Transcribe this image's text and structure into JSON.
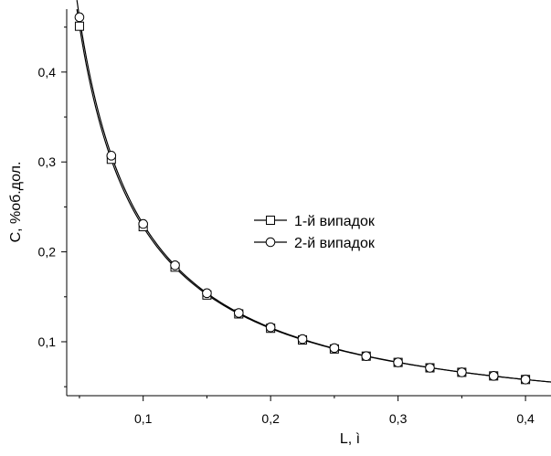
{
  "chart_data": {
    "type": "line",
    "xlabel": "L, ì",
    "ylabel": "C, %об.дол.",
    "xlim": [
      0.04,
      0.42
    ],
    "ylim": [
      0.04,
      0.47
    ],
    "x_ticks": [
      0.1,
      0.2,
      0.3,
      0.4
    ],
    "x_tick_labels": [
      "0,1",
      "0,2",
      "0,3",
      "0,4"
    ],
    "y_ticks": [
      0.1,
      0.2,
      0.3,
      0.4
    ],
    "y_tick_labels": [
      "0,1",
      "0,2",
      "0,3",
      "0,4"
    ],
    "grid": false,
    "legend_placement": "center-right",
    "colors": {
      "line": "#000000",
      "marker_fill": "#ffffff"
    },
    "series": [
      {
        "name": "1-й випадок",
        "marker": "square",
        "x": [
          0.05,
          0.075,
          0.1,
          0.125,
          0.15,
          0.175,
          0.2,
          0.225,
          0.25,
          0.275,
          0.3,
          0.325,
          0.35,
          0.375,
          0.4
        ],
        "y": [
          0.451,
          0.303,
          0.228,
          0.183,
          0.152,
          0.131,
          0.115,
          0.102,
          0.092,
          0.084,
          0.077,
          0.071,
          0.066,
          0.062,
          0.058
        ]
      },
      {
        "name": "2-й випадок",
        "marker": "circle",
        "x": [
          0.05,
          0.075,
          0.1,
          0.125,
          0.15,
          0.175,
          0.2,
          0.225,
          0.25,
          0.275,
          0.3,
          0.325,
          0.35,
          0.375,
          0.4
        ],
        "y": [
          0.461,
          0.307,
          0.231,
          0.185,
          0.154,
          0.132,
          0.116,
          0.103,
          0.093,
          0.084,
          0.077,
          0.071,
          0.066,
          0.062,
          0.058
        ]
      }
    ]
  }
}
